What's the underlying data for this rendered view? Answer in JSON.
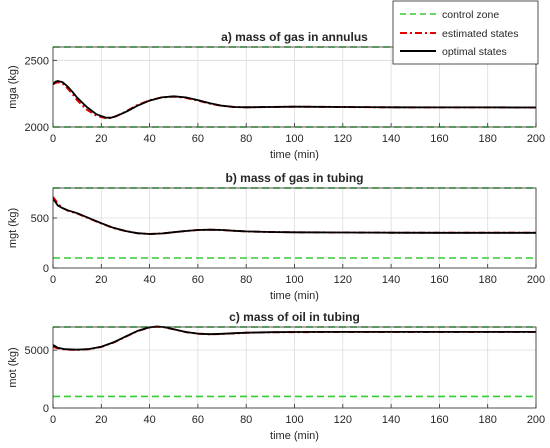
{
  "chart_data": [
    {
      "type": "line",
      "title": "a)   mass of gas in annulus",
      "xlabel": "time (min)",
      "ylabel": "mga (kg)",
      "xlim": [
        0,
        200
      ],
      "ylim": [
        2000,
        2600
      ],
      "xticks": [
        "0",
        "20",
        "40",
        "60",
        "80",
        "100",
        "120",
        "140",
        "160",
        "180",
        "200"
      ],
      "yticks": [
        "2000",
        "2500"
      ],
      "grid": true,
      "legend_position": "top-right",
      "control_zone": [
        2000,
        2600
      ],
      "series": [
        {
          "name": "estimated states",
          "x": [
            0,
            1,
            2,
            4,
            6,
            8,
            10,
            14,
            18,
            22,
            24,
            26,
            30,
            35,
            40,
            45,
            50,
            55,
            60,
            65,
            70,
            75,
            80,
            90,
            100,
            120,
            140,
            160,
            180,
            200
          ],
          "y": [
            2320,
            2330,
            2335,
            2325,
            2290,
            2250,
            2200,
            2130,
            2085,
            2065,
            2068,
            2080,
            2115,
            2165,
            2200,
            2222,
            2228,
            2218,
            2198,
            2175,
            2158,
            2150,
            2148,
            2150,
            2152,
            2150,
            2148,
            2147,
            2147,
            2146
          ]
        },
        {
          "name": "optimal states",
          "x": [
            0,
            1,
            2,
            4,
            6,
            8,
            10,
            14,
            18,
            22,
            24,
            26,
            30,
            35,
            40,
            45,
            50,
            55,
            60,
            65,
            70,
            75,
            80,
            90,
            100,
            120,
            140,
            160,
            180,
            200
          ],
          "y": [
            2320,
            2340,
            2345,
            2335,
            2305,
            2265,
            2220,
            2150,
            2095,
            2070,
            2070,
            2080,
            2112,
            2160,
            2198,
            2222,
            2230,
            2222,
            2202,
            2178,
            2160,
            2150,
            2148,
            2150,
            2152,
            2150,
            2148,
            2147,
            2147,
            2146
          ]
        }
      ]
    },
    {
      "type": "line",
      "title": "b)   mass of gas in tubing",
      "xlabel": "time (min)",
      "ylabel": "mgt (kg)",
      "xlim": [
        0,
        200
      ],
      "ylim": [
        0,
        800
      ],
      "xticks": [
        "0",
        "20",
        "40",
        "60",
        "80",
        "100",
        "120",
        "140",
        "160",
        "180",
        "200"
      ],
      "yticks": [
        "0",
        "500"
      ],
      "grid": true,
      "control_zone": [
        100,
        800
      ],
      "series": [
        {
          "name": "estimated states",
          "x": [
            0,
            1,
            2,
            4,
            6,
            10,
            15,
            20,
            25,
            30,
            35,
            40,
            45,
            50,
            55,
            60,
            65,
            70,
            75,
            80,
            90,
            100,
            120,
            140,
            160,
            180,
            200
          ],
          "y": [
            710,
            680,
            640,
            600,
            575,
            545,
            495,
            445,
            400,
            370,
            348,
            340,
            345,
            358,
            370,
            380,
            383,
            380,
            372,
            366,
            360,
            357,
            355,
            353,
            352,
            352,
            352
          ]
        },
        {
          "name": "optimal states",
          "x": [
            0,
            1,
            2,
            4,
            6,
            10,
            15,
            20,
            25,
            30,
            35,
            40,
            45,
            50,
            55,
            60,
            65,
            70,
            75,
            80,
            90,
            100,
            120,
            140,
            160,
            180,
            200
          ],
          "y": [
            690,
            660,
            625,
            598,
            578,
            548,
            498,
            448,
            402,
            370,
            348,
            340,
            345,
            358,
            370,
            380,
            383,
            380,
            372,
            366,
            360,
            357,
            355,
            353,
            352,
            352,
            352
          ]
        }
      ]
    },
    {
      "type": "line",
      "title": "c)   mass of oil in tubing",
      "xlabel": "time (min)",
      "ylabel": "mot (kg)",
      "xlim": [
        0,
        200
      ],
      "ylim": [
        0,
        7000
      ],
      "xticks": [
        "0",
        "20",
        "40",
        "60",
        "80",
        "100",
        "120",
        "140",
        "160",
        "180",
        "200"
      ],
      "yticks": [
        "0",
        "5000"
      ],
      "grid": true,
      "control_zone": [
        1000,
        7000
      ],
      "series": [
        {
          "name": "estimated states",
          "x": [
            0,
            2,
            5,
            10,
            15,
            20,
            25,
            30,
            35,
            40,
            43,
            46,
            50,
            55,
            60,
            65,
            70,
            75,
            80,
            90,
            100,
            120,
            140,
            160,
            180,
            200
          ],
          "y": [
            5300,
            5150,
            5050,
            5020,
            5080,
            5280,
            5650,
            6150,
            6650,
            6960,
            7030,
            6980,
            6800,
            6560,
            6420,
            6370,
            6400,
            6450,
            6500,
            6540,
            6560,
            6570,
            6570,
            6570,
            6570,
            6570
          ]
        },
        {
          "name": "optimal states",
          "x": [
            0,
            2,
            5,
            10,
            15,
            20,
            25,
            30,
            35,
            40,
            43,
            46,
            50,
            55,
            60,
            65,
            70,
            75,
            80,
            90,
            100,
            120,
            140,
            160,
            180,
            200
          ],
          "y": [
            5450,
            5200,
            5080,
            5040,
            5100,
            5300,
            5670,
            6170,
            6660,
            6970,
            7040,
            6990,
            6810,
            6570,
            6430,
            6380,
            6410,
            6460,
            6510,
            6550,
            6570,
            6580,
            6580,
            6580,
            6580,
            6580
          ]
        }
      ]
    }
  ],
  "legend": {
    "items": [
      {
        "label": "control zone",
        "color": "#33cc33",
        "style": "dashed"
      },
      {
        "label": "estimated states",
        "color": "#e00000",
        "style": "dashdot"
      },
      {
        "label": "optimal states",
        "color": "#000000",
        "style": "solid"
      }
    ]
  }
}
